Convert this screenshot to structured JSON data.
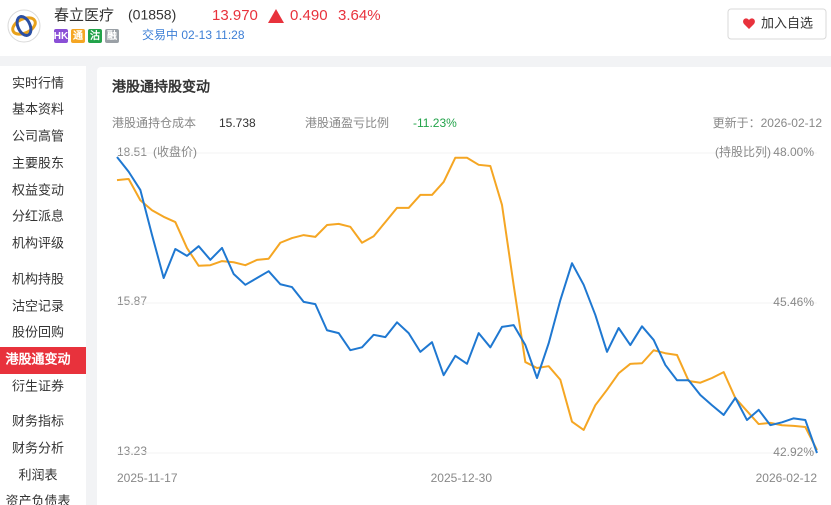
{
  "header": {
    "name": "春立医疗",
    "code": "(01858)",
    "price": "13.970",
    "change": "0.490",
    "change_pct": "3.64%",
    "badges": [
      "HK",
      "通",
      "沽",
      "融"
    ],
    "status": "交易中 02-13 11:28",
    "button": "加入自选"
  },
  "sidebar": {
    "items": [
      "实时行情",
      "基本资料",
      "公司高管",
      "主要股东",
      "权益变动",
      "分红派息",
      "机构评级",
      "机构持股",
      "沽空记录",
      "股份回购",
      "港股通变动",
      "衍生证券",
      "财务指标",
      "财务分析",
      "利润表",
      "资产负债表"
    ]
  },
  "panel": {
    "title": "港股通持股变动",
    "cost_label": "港股通持仓成本",
    "cost": "15.738",
    "pnl_label": "港股通盈亏比例",
    "pnl": "-11.23%",
    "updated": "更新于：2026-02-12"
  },
  "chart_data": {
    "type": "line",
    "y_label": "(收盘价)",
    "y2_label": "(持股比列)",
    "categories": [
      "2025-11-17",
      null,
      null,
      null,
      null,
      null,
      null,
      null,
      null,
      null,
      null,
      null,
      null,
      null,
      null,
      null,
      null,
      null,
      null,
      null,
      null,
      null,
      null,
      null,
      null,
      null,
      null,
      null,
      null,
      "2025-12-30",
      null,
      null,
      null,
      null,
      null,
      null,
      null,
      null,
      null,
      null,
      null,
      null,
      null,
      null,
      null,
      null,
      null,
      null,
      null,
      null,
      null,
      null,
      null,
      null,
      null,
      null,
      null,
      null,
      null,
      null,
      "2026-02-12"
    ],
    "ylim": [
      13.23,
      18.51
    ],
    "yticks": [
      13.23,
      15.87,
      18.51
    ],
    "y2lim": [
      42.92,
      48
    ],
    "y2ticks": [
      {
        "value": 42.92,
        "label": "42.92%"
      },
      {
        "value": 45.46,
        "label": "45.46%"
      },
      {
        "value": 48,
        "label": "48.00%"
      }
    ],
    "grid": true,
    "series": [
      {
        "name": "收盘价",
        "color": "#1f78d1",
        "values": [
          18.44,
          18.18,
          17.86,
          17.07,
          16.31,
          16.82,
          16.7,
          16.87,
          16.63,
          16.84,
          16.38,
          16.19,
          16.31,
          16.43,
          16.2,
          16.15,
          15.89,
          15.85,
          15.39,
          15.34,
          15.04,
          15.09,
          15.31,
          15.27,
          15.53,
          15.34,
          15.01,
          15.18,
          14.6,
          14.94,
          14.8,
          15.34,
          15.09,
          15.45,
          15.48,
          15.13,
          14.55,
          15.16,
          15.92,
          16.57,
          16.19,
          15.66,
          15.01,
          15.43,
          15.13,
          15.46,
          15.22,
          14.78,
          14.51,
          14.51,
          14.25,
          14.07,
          13.9,
          14.2,
          13.81,
          13.99,
          13.72,
          13.77,
          13.84,
          13.81,
          13.23
        ]
      },
      {
        "name": "持股比列",
        "color": "#f5a623",
        "axis": "y2",
        "values": [
          47.54,
          47.56,
          47.2,
          47.03,
          46.92,
          46.83,
          46.39,
          46.09,
          46.1,
          46.17,
          46.15,
          46.1,
          46.19,
          46.21,
          46.48,
          46.56,
          46.61,
          46.58,
          46.78,
          46.8,
          46.75,
          46.48,
          46.59,
          46.83,
          47.07,
          47.07,
          47.29,
          47.29,
          47.51,
          47.92,
          47.92,
          47.8,
          47.78,
          47.12,
          45.76,
          44.46,
          44.36,
          44.39,
          44.16,
          43.45,
          43.31,
          43.73,
          43.99,
          44.27,
          44.43,
          44.44,
          44.66,
          44.61,
          44.58,
          44.14,
          44.11,
          44.19,
          44.29,
          43.85,
          43.63,
          43.41,
          43.43,
          43.39,
          43.38,
          43.36,
          42.97
        ]
      }
    ]
  }
}
